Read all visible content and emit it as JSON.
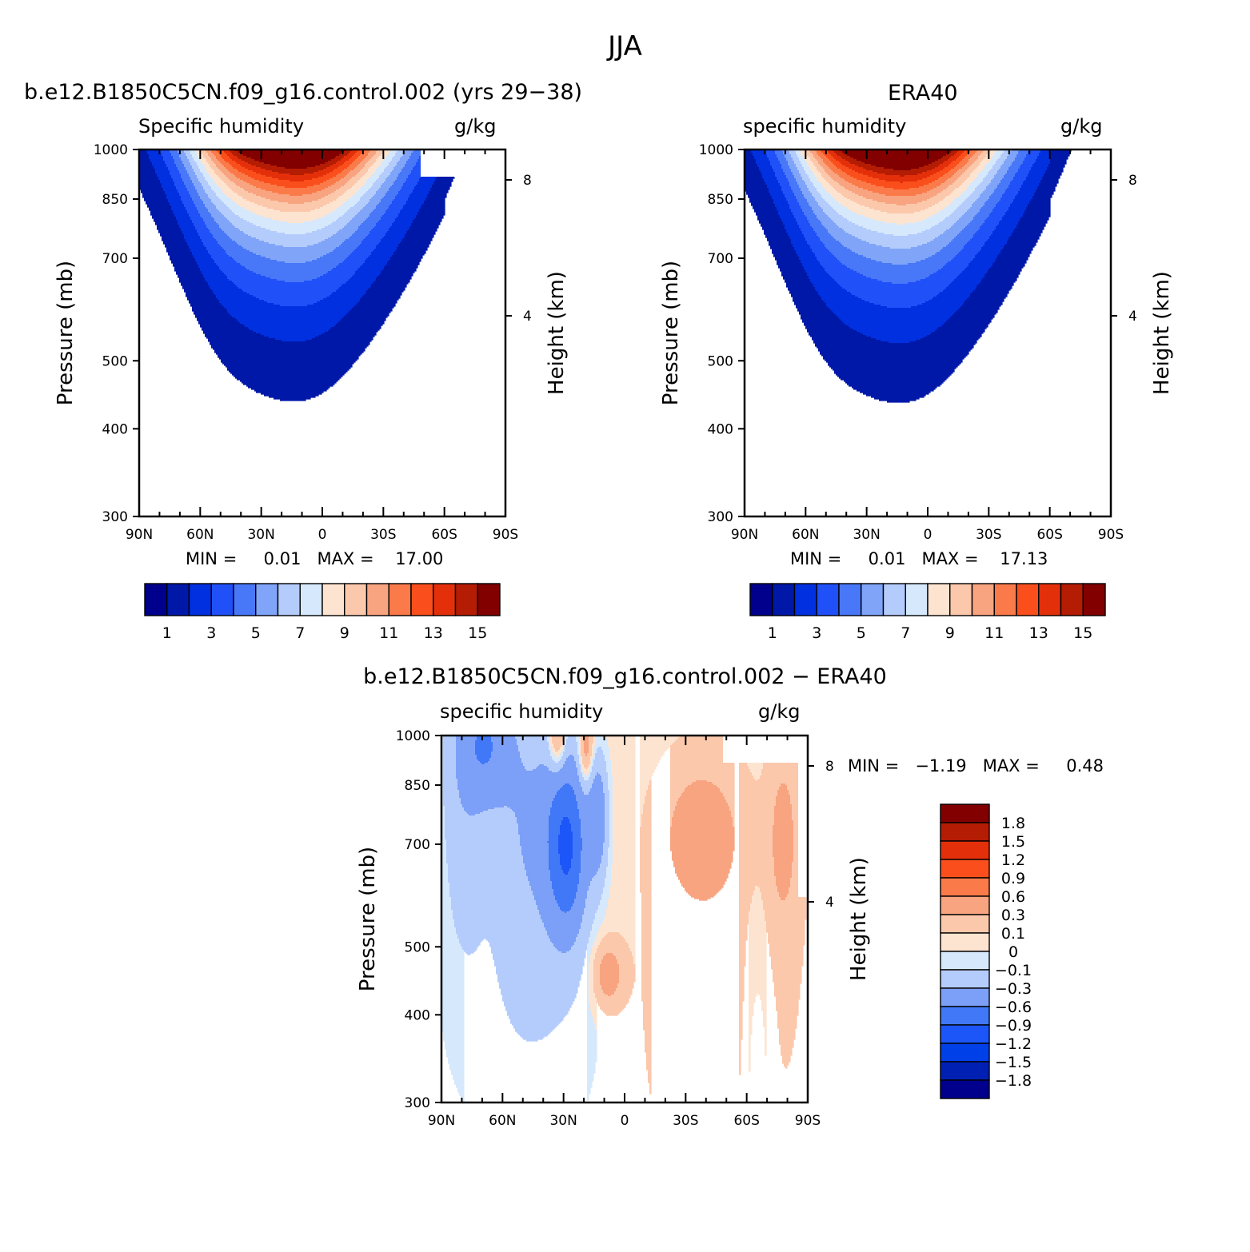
{
  "main_title": "JJA",
  "colors": {
    "qv_palette": [
      "#00008c",
      "#0018a8",
      "#0030e0",
      "#2050f8",
      "#4878f8",
      "#80a4f8",
      "#b4ccfc",
      "#d6e8fc",
      "#fde4d0",
      "#fcc8ac",
      "#f8a480",
      "#fa7a4a",
      "#fa4f1c",
      "#e4300a",
      "#b41c04",
      "#820000"
    ],
    "diff_palette": [
      "#00008c",
      "#0020b4",
      "#0040e8",
      "#1c56f8",
      "#4078f8",
      "#7ca0f8",
      "#b4ccfc",
      "#d6e8fc",
      "#fde4d0",
      "#fcc8ac",
      "#f8a480",
      "#fa7a4a",
      "#fa4f1c",
      "#e4300a",
      "#b41c04",
      "#820000"
    ]
  },
  "panel_top_left": {
    "case_title": "b.e12.B1850C5CN.f09_g16.control.002 (yrs 29−38)",
    "left_label": "Specific humidity",
    "right_label": "g/kg",
    "min_max": "MIN =     0.01   MAX =    17.00"
  },
  "panel_top_right": {
    "case_title": "ERA40",
    "left_label": "specific humidity",
    "right_label": "g/kg",
    "min_max": "MIN =     0.01   MAX =    17.13"
  },
  "panel_bottom": {
    "case_title": "b.e12.B1850C5CN.f09_g16.control.002 − ERA40",
    "left_label": "specific humidity",
    "right_label": "g/kg",
    "min_max": "MIN =   −1.19   MAX =     0.48"
  },
  "chart_data": [
    {
      "type": "heatmap",
      "title": "b.e12.B1850C5CN.f09_g16.control.002 (yrs 29−38)",
      "subtitle_left": "Specific humidity",
      "units": "g/kg",
      "xlabel": "",
      "ylabel": "Pressure (mb)",
      "ylabel_right": "Height (km)",
      "x_ticks": [
        "90N",
        "60N",
        "30N",
        "0",
        "30S",
        "60S",
        "90S"
      ],
      "x_range": [
        90,
        -90
      ],
      "y_ticks": [
        300,
        400,
        500,
        700,
        850,
        1000
      ],
      "y_range": [
        1000,
        300
      ],
      "y_scale": "log",
      "height_ticks": [
        8,
        4
      ],
      "levels": [
        1,
        2,
        3,
        4,
        5,
        6,
        7,
        8,
        9,
        10,
        11,
        12,
        13,
        14,
        15
      ],
      "colorbar_labels": [
        "1",
        "3",
        "5",
        "7",
        "9",
        "11",
        "13",
        "15"
      ],
      "min": 0.01,
      "max": 17.0,
      "peak": {
        "lat": 10,
        "value": 17.0
      }
    },
    {
      "type": "heatmap",
      "title": "ERA40",
      "subtitle_left": "specific humidity",
      "units": "g/kg",
      "xlabel": "",
      "ylabel": "Pressure (mb)",
      "ylabel_right": "Height (km)",
      "x_ticks": [
        "90N",
        "60N",
        "30N",
        "0",
        "30S",
        "60S",
        "90S"
      ],
      "x_range": [
        90,
        -90
      ],
      "y_ticks": [
        300,
        400,
        500,
        700,
        850,
        1000
      ],
      "y_range": [
        1000,
        300
      ],
      "y_scale": "log",
      "height_ticks": [
        8,
        4
      ],
      "levels": [
        1,
        2,
        3,
        4,
        5,
        6,
        7,
        8,
        9,
        10,
        11,
        12,
        13,
        14,
        15
      ],
      "colorbar_labels": [
        "1",
        "3",
        "5",
        "7",
        "9",
        "11",
        "13",
        "15"
      ],
      "min": 0.01,
      "max": 17.13,
      "peak": {
        "lat": 10,
        "value": 17.13
      }
    },
    {
      "type": "heatmap",
      "title": "b.e12.B1850C5CN.f09_g16.control.002 − ERA40",
      "subtitle_left": "specific humidity",
      "units": "g/kg",
      "xlabel": "",
      "ylabel": "Pressure (mb)",
      "ylabel_right": "Height (km)",
      "x_ticks": [
        "90N",
        "60N",
        "30N",
        "0",
        "30S",
        "60S",
        "90S"
      ],
      "x_range": [
        90,
        -90
      ],
      "y_ticks": [
        300,
        400,
        500,
        700,
        850,
        1000
      ],
      "y_range": [
        1000,
        300
      ],
      "y_scale": "log",
      "height_ticks": [
        8,
        4
      ],
      "levels": [
        -1.8,
        -1.5,
        -1.2,
        -0.9,
        -0.6,
        -0.3,
        -0.1,
        0,
        0.1,
        0.3,
        0.6,
        0.9,
        1.2,
        1.5,
        1.8
      ],
      "colorbar_labels": [
        "1.8",
        "1.5",
        "1.2",
        "0.9",
        "0.6",
        "0.3",
        "0.1",
        "0",
        "−0.1",
        "−0.3",
        "−0.6",
        "−0.9",
        "−1.2",
        "−1.5",
        "−1.8"
      ],
      "min": -1.19,
      "max": 0.48
    }
  ]
}
